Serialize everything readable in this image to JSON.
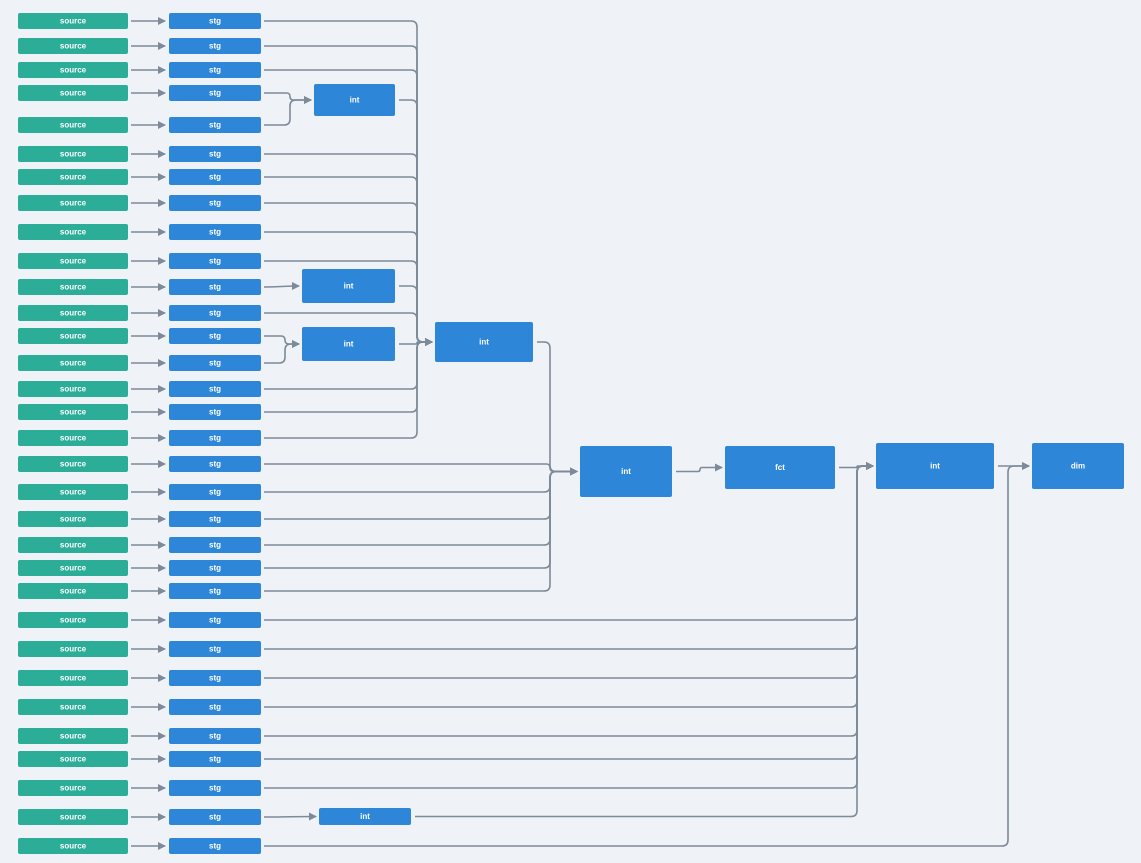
{
  "rows": [
    {
      "source": "source",
      "stg": "stg"
    },
    {
      "source": "source",
      "stg": "stg"
    },
    {
      "source": "source",
      "stg": "stg"
    },
    {
      "source": "source",
      "stg": "stg"
    },
    {
      "source": "source",
      "stg": "stg"
    },
    {
      "source": "source",
      "stg": "stg"
    },
    {
      "source": "source",
      "stg": "stg"
    },
    {
      "source": "source",
      "stg": "stg"
    },
    {
      "source": "source",
      "stg": "stg"
    },
    {
      "source": "source",
      "stg": "stg"
    },
    {
      "source": "source",
      "stg": "stg"
    },
    {
      "source": "source",
      "stg": "stg"
    },
    {
      "source": "source",
      "stg": "stg"
    },
    {
      "source": "source",
      "stg": "stg"
    },
    {
      "source": "source",
      "stg": "stg"
    },
    {
      "source": "source",
      "stg": "stg"
    },
    {
      "source": "source",
      "stg": "stg"
    },
    {
      "source": "source",
      "stg": "stg"
    },
    {
      "source": "source",
      "stg": "stg"
    },
    {
      "source": "source",
      "stg": "stg"
    },
    {
      "source": "source",
      "stg": "stg"
    },
    {
      "source": "source",
      "stg": "stg"
    },
    {
      "source": "source",
      "stg": "stg"
    },
    {
      "source": "source",
      "stg": "stg"
    },
    {
      "source": "source",
      "stg": "stg"
    },
    {
      "source": "source",
      "stg": "stg"
    },
    {
      "source": "source",
      "stg": "stg"
    },
    {
      "source": "source",
      "stg": "stg"
    },
    {
      "source": "source",
      "stg": "stg"
    },
    {
      "source": "source",
      "stg": "stg"
    },
    {
      "source": "source",
      "stg": "stg"
    },
    {
      "source": "source",
      "stg": "stg"
    }
  ],
  "models": [
    {
      "label": "int"
    },
    {
      "label": "int"
    },
    {
      "label": "int"
    },
    {
      "label": "int"
    },
    {
      "label": "int"
    },
    {
      "label": "fct"
    },
    {
      "label": "int"
    },
    {
      "label": "int"
    },
    {
      "label": "dim"
    }
  ]
}
